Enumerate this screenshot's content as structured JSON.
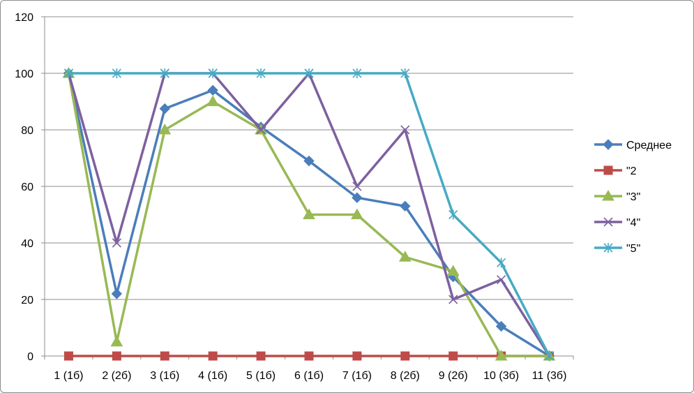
{
  "chart_data": {
    "type": "line",
    "title": "",
    "xlabel": "",
    "ylabel": "",
    "categories": [
      "1 (1б)",
      "2 (2б)",
      "3 (1б)",
      "4 (1б)",
      "5 (1б)",
      "6 (1б)",
      "7 (1б)",
      "8 (2б)",
      "9 (2б)",
      "10 (3б)",
      "11 (3б)"
    ],
    "ylim": [
      0,
      120
    ],
    "yticks": [
      0,
      20,
      40,
      60,
      80,
      100,
      120
    ],
    "grid": "horizontal",
    "legend_position": "right",
    "series": [
      {
        "name": "Среднее",
        "color": "#4a7ebb",
        "marker": "diamond",
        "values": [
          100,
          22,
          87.5,
          94,
          81,
          69,
          56,
          53,
          28,
          10.5,
          0
        ]
      },
      {
        "name": "\"2",
        "color": "#be4b48",
        "marker": "square",
        "values": [
          0,
          0,
          0,
          0,
          0,
          0,
          0,
          0,
          0,
          0,
          0
        ]
      },
      {
        "name": "\"3\"",
        "color": "#98b954",
        "marker": "triangle",
        "values": [
          100,
          5,
          80,
          90,
          80,
          50,
          50,
          35,
          30,
          0,
          0
        ]
      },
      {
        "name": "\"4\"",
        "color": "#7d60a0",
        "marker": "x",
        "values": [
          100,
          40,
          100,
          100,
          80,
          100,
          60,
          80,
          20,
          27,
          0
        ]
      },
      {
        "name": "\"5\"",
        "color": "#46aac4",
        "marker": "star",
        "values": [
          100,
          100,
          100,
          100,
          100,
          100,
          100,
          100,
          50,
          33,
          0
        ]
      }
    ]
  }
}
